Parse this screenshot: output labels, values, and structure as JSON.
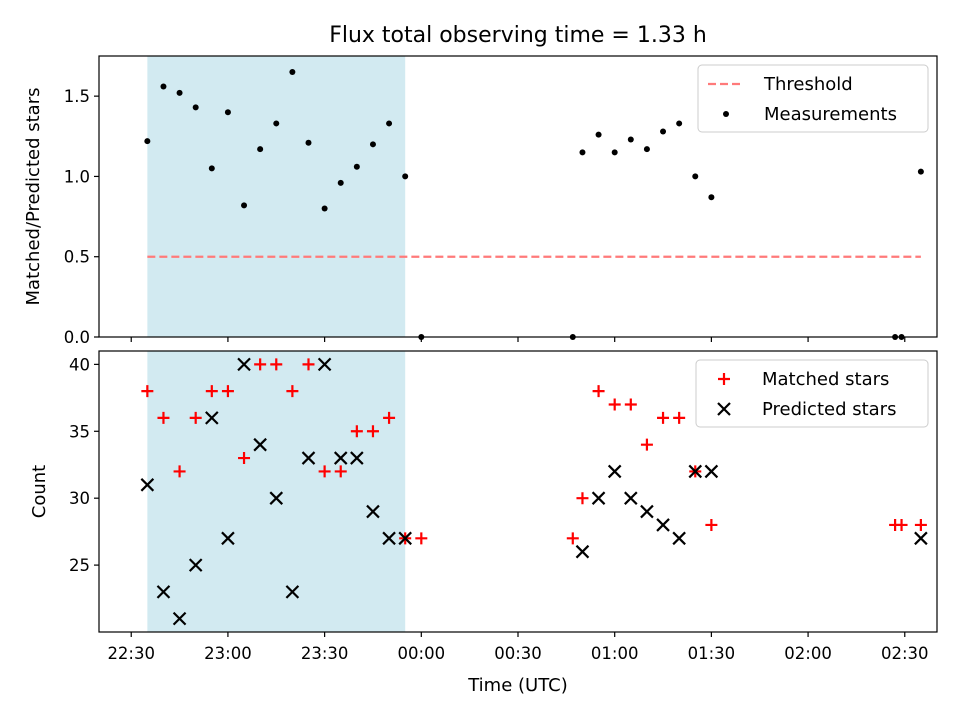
{
  "chart_data": {
    "type": "scatter",
    "title": "Flux total observing time = 1.33 h",
    "xlabel": "Time (UTC)",
    "x_unit": "minutes after 22:30 UTC",
    "x_range": [
      -10,
      250
    ],
    "xticks": [
      {
        "label": "22:30",
        "value": 0
      },
      {
        "label": "23:00",
        "value": 30
      },
      {
        "label": "23:30",
        "value": 60
      },
      {
        "label": "00:00",
        "value": 90
      },
      {
        "label": "00:30",
        "value": 120
      },
      {
        "label": "01:00",
        "value": 150
      },
      {
        "label": "01:30",
        "value": 180
      },
      {
        "label": "02:00",
        "value": 210
      },
      {
        "label": "02:30",
        "value": 240
      }
    ],
    "shaded_span": {
      "x0": 5,
      "x1": 85,
      "color": "#add8e6"
    },
    "panels": [
      {
        "ylabel": "Matched/Predicted stars",
        "ylim": [
          0,
          1.75
        ],
        "yticks": [
          0.0,
          0.5,
          1.0,
          1.5
        ],
        "ytick_labels": [
          "0.0",
          "0.5",
          "1.0",
          "1.5"
        ],
        "legend": [
          {
            "label": "Threshold",
            "style": "dashed-line",
            "color": "#ff7a7a"
          },
          {
            "label": "Measurements",
            "style": "dot",
            "color": "#000000"
          }
        ],
        "series": [
          {
            "name": "Threshold",
            "kind": "line",
            "color": "#ff7a7a",
            "x": [
              5,
              245
            ],
            "y": [
              0.5,
              0.5
            ]
          },
          {
            "name": "Measurements",
            "kind": "dot",
            "color": "#000000",
            "x": [
              5,
              10,
              15,
              20,
              25,
              30,
              35,
              40,
              45,
              50,
              55,
              60,
              65,
              70,
              75,
              80,
              85,
              90,
              137,
              140,
              145,
              150,
              155,
              160,
              165,
              170,
              175,
              180,
              237,
              239,
              245
            ],
            "y": [
              1.22,
              1.56,
              1.52,
              1.43,
              1.05,
              1.4,
              0.82,
              1.17,
              1.33,
              1.65,
              1.21,
              0.8,
              0.96,
              1.06,
              1.2,
              1.33,
              1.0,
              0.0,
              0.0,
              1.15,
              1.26,
              1.15,
              1.23,
              1.17,
              1.28,
              1.33,
              1.0,
              0.87,
              0.0,
              0.0,
              1.03
            ]
          }
        ]
      },
      {
        "ylabel": "Count",
        "ylim": [
          20,
          41
        ],
        "yticks": [
          25,
          30,
          35,
          40
        ],
        "ytick_labels": [
          "25",
          "30",
          "35",
          "40"
        ],
        "legend": [
          {
            "label": "Matched stars",
            "style": "plus",
            "color": "#ff0000"
          },
          {
            "label": "Predicted stars",
            "style": "x",
            "color": "#000000"
          }
        ],
        "series": [
          {
            "name": "Matched stars",
            "kind": "plus",
            "color": "#ff0000",
            "x": [
              5,
              10,
              15,
              20,
              25,
              30,
              35,
              40,
              45,
              50,
              55,
              60,
              65,
              70,
              75,
              80,
              85,
              90,
              137,
              140,
              145,
              150,
              155,
              160,
              165,
              170,
              175,
              180,
              237,
              239,
              245
            ],
            "y": [
              38,
              36,
              32,
              36,
              38,
              38,
              33,
              40,
              40,
              38,
              40,
              32,
              32,
              35,
              35,
              36,
              27,
              27,
              27,
              30,
              38,
              37,
              37,
              34,
              36,
              36,
              32,
              28,
              28,
              28,
              28
            ]
          },
          {
            "name": "Predicted stars",
            "kind": "x",
            "color": "#000000",
            "x": [
              5,
              10,
              15,
              20,
              25,
              30,
              35,
              40,
              45,
              50,
              55,
              60,
              65,
              70,
              75,
              80,
              85,
              140,
              145,
              150,
              155,
              160,
              165,
              170,
              175,
              180,
              245
            ],
            "y": [
              31,
              23,
              21,
              25,
              36,
              27,
              40,
              34,
              30,
              23,
              33,
              40,
              33,
              33,
              29,
              27,
              27,
              26,
              30,
              32,
              30,
              29,
              28,
              27,
              32,
              32,
              27
            ]
          }
        ]
      }
    ]
  }
}
